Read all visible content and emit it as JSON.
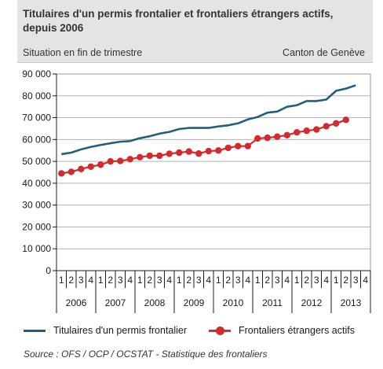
{
  "header": {
    "title": "Titulaires d'un permis frontalier et frontaliers étrangers actifs, depuis 2006",
    "subtitle": "Situation en fin de trimestre",
    "region": "Canton de Genève"
  },
  "footer": {
    "source": "Source : OFS / OCP / OCSTAT  - Statistique des frontaliers"
  },
  "chart_data": {
    "type": "line",
    "title": "Titulaires d'un permis frontalier et frontaliers étrangers actifs, depuis 2006",
    "subtitle": "Situation en fin de trimestre",
    "xlabel": "",
    "ylabel": "",
    "ylim": [
      0,
      90000
    ],
    "yticks": [
      "0",
      "10 000",
      "20 000",
      "30 000",
      "40 000",
      "50 000",
      "60 000",
      "70 000",
      "80 000",
      "90 000"
    ],
    "years": [
      "2006",
      "2007",
      "2008",
      "2009",
      "2010",
      "2011",
      "2012",
      "2013"
    ],
    "quarters": [
      "1",
      "2",
      "3",
      "4"
    ],
    "categories": [
      "2006 T1",
      "2006 T2",
      "2006 T3",
      "2006 T4",
      "2007 T1",
      "2007 T2",
      "2007 T3",
      "2007 T4",
      "2008 T1",
      "2008 T2",
      "2008 T3",
      "2008 T4",
      "2009 T1",
      "2009 T2",
      "2009 T3",
      "2009 T4",
      "2010 T1",
      "2010 T2",
      "2010 T3",
      "2010 T4",
      "2011 T1",
      "2011 T2",
      "2011 T3",
      "2011 T4",
      "2012 T1",
      "2012 T2",
      "2012 T3",
      "2012 T4",
      "2013 T1",
      "2013 T2",
      "2013 T3",
      "2013 T4"
    ],
    "grid": true,
    "legend_position": "bottom",
    "series": [
      {
        "name": "Titulaires d'un permis frontalier",
        "color": "#1f5f7f",
        "marker": "none",
        "values": [
          53300,
          54000,
          55500,
          56600,
          57500,
          58300,
          59000,
          59300,
          60600,
          61500,
          62700,
          63500,
          64800,
          65300,
          65300,
          65300,
          66000,
          66500,
          67400,
          69200,
          70300,
          72300,
          72800,
          75000,
          75700,
          77600,
          77600,
          78300,
          82300,
          83300,
          84800,
          null
        ]
      },
      {
        "name": "Frontaliers étrangers actifs",
        "color": "#d42a2e",
        "marker": "circle",
        "values": [
          44500,
          45200,
          46500,
          47600,
          48500,
          50000,
          50200,
          51000,
          51900,
          52600,
          52600,
          53500,
          54000,
          54500,
          53600,
          54700,
          55000,
          56200,
          57000,
          57000,
          60500,
          60800,
          61300,
          62000,
          63300,
          64000,
          64600,
          66100,
          67400,
          69000,
          null,
          null
        ]
      }
    ]
  }
}
